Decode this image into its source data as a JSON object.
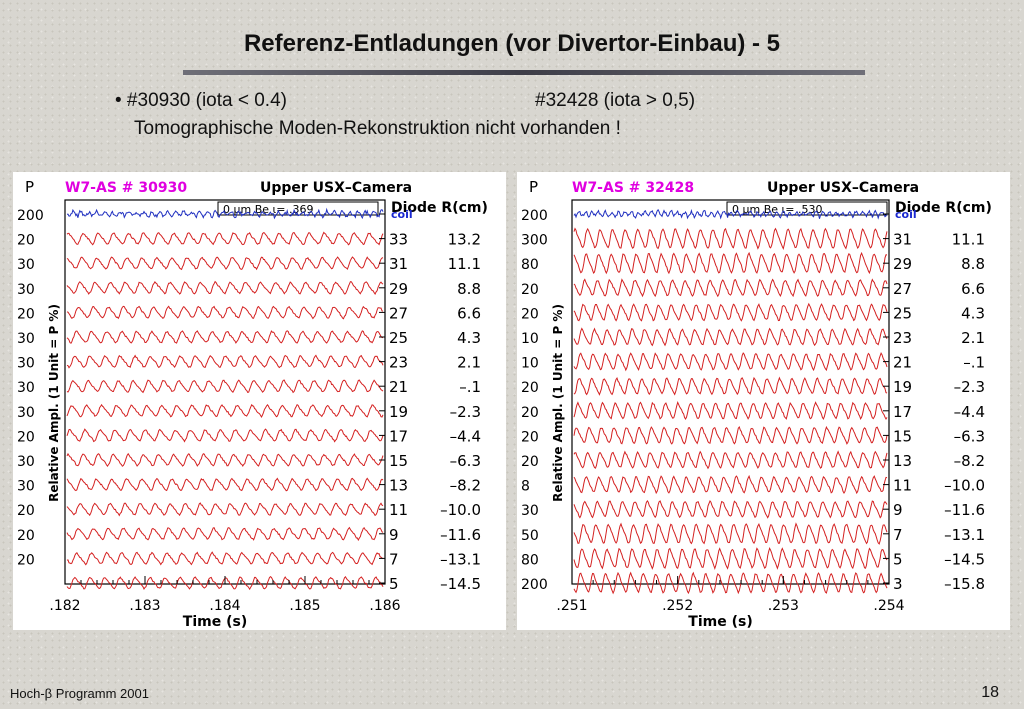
{
  "slide": {
    "title": "Referenz-Entladungen (vor Divertor-Einbau)  - 5",
    "bullet_left": "• #30930 (iota < 0.4)",
    "bullet_right": "#32428 (iota > 0,5)",
    "subline": "Tomographische Moden-Rekonstruktion nicht vorhanden !",
    "footer_left": "Hoch-β Programm 2001",
    "page_number": "18"
  },
  "colors": {
    "trace": "#d42020",
    "coil_trace": "#2030c0",
    "header_magenta": "#e000e0",
    "coil_label": "#1a28d0"
  },
  "panels": [
    {
      "header_left": "W7-AS #  30930",
      "header_right": "Upper USX–Camera",
      "p_label": "P",
      "ylabel": "Relative Ampl. (1 Unit = P %)",
      "box_label": "0  μm Be ι= .369",
      "diode_header": "Diode R(cm)",
      "coil_label": "coil",
      "p_values": [
        "200",
        "20",
        "30",
        "30",
        "20",
        "30",
        "30",
        "30",
        "30",
        "20",
        "30",
        "30",
        "20",
        "20",
        "20"
      ],
      "diodes": [
        "33",
        "31",
        "29",
        "27",
        "25",
        "23",
        "21",
        "19",
        "17",
        "15",
        "13",
        "11",
        "9",
        "7",
        "5"
      ],
      "radii": [
        "13.2",
        "11.1",
        "8.8",
        "6.6",
        "4.3",
        "2.1",
        "–.1",
        "–2.3",
        "–4.4",
        "–6.3",
        "–8.2",
        "–10.0",
        "–11.6",
        "–13.1",
        "–14.5"
      ],
      "xticks": [
        ".182",
        ".183",
        ".184",
        ".185",
        ".186"
      ],
      "xlabel": "Time (s)",
      "mode_cycles": 21
    },
    {
      "header_left": "W7-AS #  32428",
      "header_right": "Upper USX–Camera",
      "p_label": "P",
      "ylabel": "Relative Ampl. (1 Unit = P %)",
      "box_label": "0  μm Be ι= .530",
      "diode_header": "Diode R(cm)",
      "coil_label": "coil",
      "p_values": [
        "200",
        "300",
        "80",
        "20",
        "20",
        "10",
        "10",
        "20",
        "20",
        "20",
        "20",
        "8",
        "30",
        "50",
        "80",
        "200"
      ],
      "diodes": [
        "31",
        "29",
        "27",
        "25",
        "23",
        "21",
        "19",
        "17",
        "15",
        "13",
        "11",
        "9",
        "7",
        "5",
        "3"
      ],
      "radii": [
        "11.1",
        "8.8",
        "6.6",
        "4.3",
        "2.1",
        "–.1",
        "–2.3",
        "–4.4",
        "–6.3",
        "–8.2",
        "–10.0",
        "–11.6",
        "–13.1",
        "–14.5",
        "–15.8"
      ],
      "xticks": [
        ".251",
        ".252",
        ".253",
        ".254"
      ],
      "xlabel": "Time (s)",
      "mode_cycles": 25
    }
  ]
}
